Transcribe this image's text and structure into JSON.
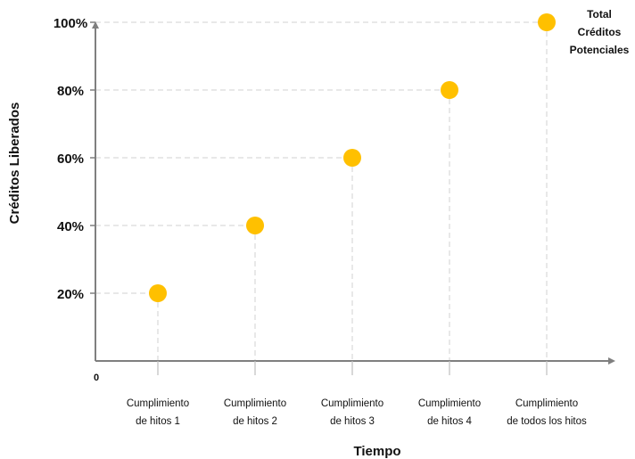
{
  "chart_data": {
    "type": "scatter",
    "categories": [
      [
        "Cumplimiento",
        "de  hitos 1"
      ],
      [
        "Cumplimiento",
        "de  hitos 2"
      ],
      [
        "Cumplimiento",
        "de  hitos 3"
      ],
      [
        "Cumplimiento",
        "de  hitos 4"
      ],
      [
        "Cumplimiento",
        "de  todos los hitos"
      ]
    ],
    "values": [
      20,
      40,
      60,
      80,
      100
    ],
    "y_tick_labels": [
      "20%",
      "40%",
      "60%",
      "80%",
      "100%"
    ],
    "origin_label": "0",
    "xlabel": "Tiempo",
    "ylabel": "Créditos Liberados",
    "ylim": [
      0,
      100
    ],
    "annotation": [
      "Total",
      "Créditos",
      "Potenciales"
    ],
    "grid": "dashed reference lines from each point to both axes",
    "legend": "none",
    "colors": {
      "marker": "#FFC000",
      "axis": "#7f7f7f",
      "guide": "#d0d0d0"
    }
  }
}
